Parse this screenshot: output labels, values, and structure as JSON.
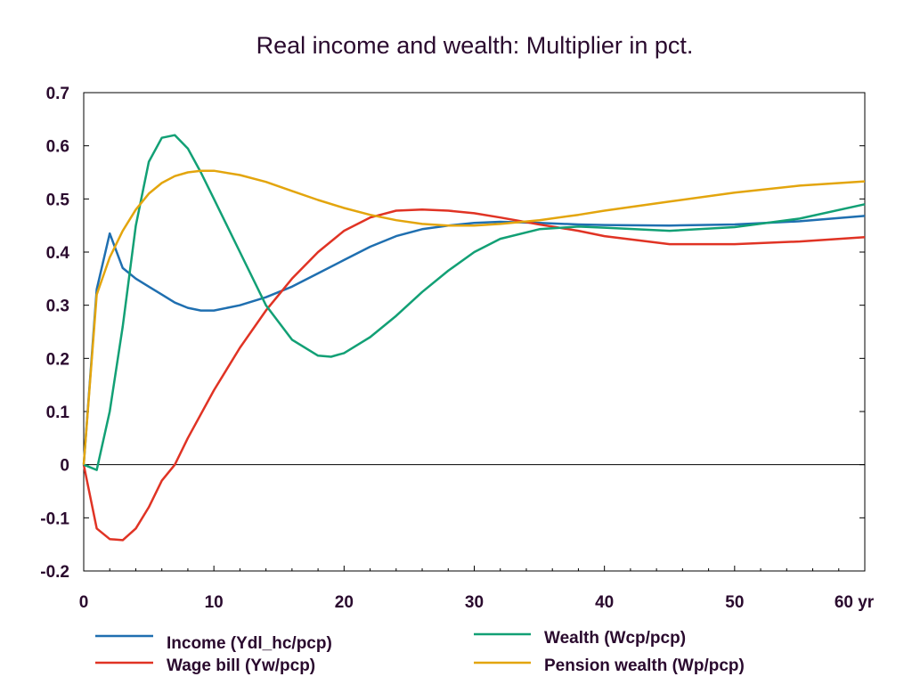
{
  "chart_data": {
    "type": "line",
    "title": "Real income and wealth: Multiplier in pct.",
    "xlim": [
      0,
      60
    ],
    "ylim": [
      -0.2,
      0.7
    ],
    "x_ticks": [
      "0",
      "10",
      "20",
      "30",
      "40",
      "50",
      "60 yr"
    ],
    "y_ticks": [
      "0.7",
      "0.6",
      "0.5",
      "0.4",
      "0.3",
      "0.2",
      "0.1",
      "0",
      "-0.1",
      "-0.2"
    ],
    "legend_position": "bottom",
    "series": [
      {
        "name": "Income (Ydl_hc/pcp)",
        "color": "#1f6fb0",
        "x": [
          0,
          1,
          2,
          3,
          4,
          5,
          6,
          7,
          8,
          9,
          10,
          12,
          14,
          16,
          18,
          20,
          22,
          24,
          26,
          28,
          30,
          32,
          35,
          38,
          40,
          45,
          50,
          55,
          60
        ],
        "y": [
          0.0,
          0.33,
          0.435,
          0.37,
          0.35,
          0.335,
          0.32,
          0.305,
          0.295,
          0.29,
          0.29,
          0.3,
          0.315,
          0.335,
          0.36,
          0.385,
          0.41,
          0.43,
          0.443,
          0.45,
          0.455,
          0.457,
          0.455,
          0.452,
          0.451,
          0.45,
          0.452,
          0.458,
          0.468
        ]
      },
      {
        "name": "Wage bill (Yw/pcp)",
        "color": "#e03324",
        "x": [
          0,
          1,
          2,
          3,
          4,
          5,
          6,
          7,
          8,
          10,
          12,
          14,
          16,
          18,
          20,
          22,
          24,
          26,
          28,
          30,
          32,
          35,
          38,
          40,
          45,
          50,
          55,
          60
        ],
        "y": [
          0.0,
          -0.12,
          -0.14,
          -0.142,
          -0.12,
          -0.08,
          -0.03,
          0.0,
          0.05,
          0.14,
          0.22,
          0.29,
          0.35,
          0.4,
          0.44,
          0.465,
          0.478,
          0.48,
          0.478,
          0.473,
          0.465,
          0.452,
          0.44,
          0.43,
          0.415,
          0.415,
          0.42,
          0.428
        ]
      },
      {
        "name": "Wealth (Wcp/pcp)",
        "color": "#12a075",
        "x": [
          0,
          1,
          2,
          3,
          4,
          5,
          6,
          7,
          8,
          9,
          10,
          12,
          14,
          16,
          18,
          19,
          20,
          22,
          24,
          26,
          28,
          30,
          32,
          35,
          38,
          40,
          45,
          50,
          55,
          60
        ],
        "y": [
          0.0,
          -0.01,
          0.1,
          0.26,
          0.45,
          0.57,
          0.615,
          0.62,
          0.595,
          0.55,
          0.5,
          0.4,
          0.3,
          0.235,
          0.205,
          0.203,
          0.21,
          0.24,
          0.28,
          0.325,
          0.365,
          0.4,
          0.425,
          0.443,
          0.448,
          0.446,
          0.44,
          0.447,
          0.463,
          0.49
        ]
      },
      {
        "name": "Pension wealth (Wp/pcp)",
        "color": "#e3a50d",
        "x": [
          0,
          1,
          2,
          3,
          4,
          5,
          6,
          7,
          8,
          9,
          10,
          12,
          14,
          16,
          18,
          20,
          22,
          24,
          26,
          28,
          30,
          32,
          35,
          38,
          40,
          45,
          50,
          55,
          60
        ],
        "y": [
          0.0,
          0.32,
          0.39,
          0.44,
          0.48,
          0.51,
          0.53,
          0.543,
          0.55,
          0.553,
          0.553,
          0.545,
          0.532,
          0.515,
          0.498,
          0.483,
          0.47,
          0.46,
          0.453,
          0.45,
          0.45,
          0.453,
          0.46,
          0.47,
          0.478,
          0.495,
          0.512,
          0.525,
          0.533
        ]
      }
    ]
  }
}
